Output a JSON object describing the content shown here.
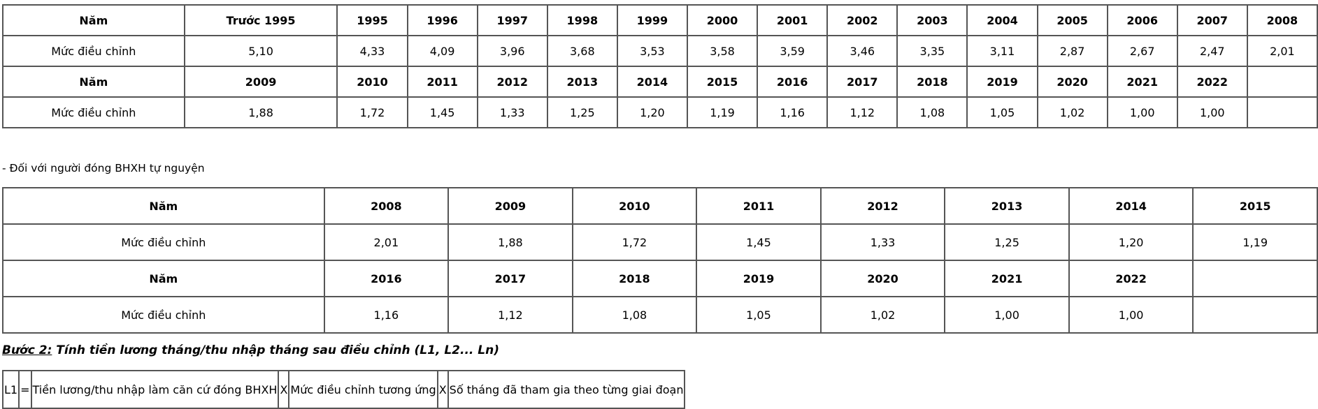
{
  "table1": {
    "row_label_year": "Năm",
    "row_label_rate": "Mức điều chỉnh",
    "rows": [
      {
        "years": [
          "Trước 1995",
          "1995",
          "1996",
          "1997",
          "1998",
          "1999",
          "2000",
          "2001",
          "2002",
          "2003",
          "2004",
          "2005",
          "2006",
          "2007",
          "2008"
        ],
        "rates": [
          "5,10",
          "4,33",
          "4,09",
          "3,96",
          "3,68",
          "3,53",
          "3,58",
          "3,59",
          "3,46",
          "3,35",
          "3,11",
          "2,87",
          "2,67",
          "2,47",
          "2,01"
        ]
      },
      {
        "years": [
          "2009",
          "2010",
          "2011",
          "2012",
          "2013",
          "2014",
          "2015",
          "2016",
          "2017",
          "2018",
          "2019",
          "2020",
          "2021",
          "2022",
          ""
        ],
        "rates": [
          "1,88",
          "1,72",
          "1,45",
          "1,33",
          "1,25",
          "1,20",
          "1,19",
          "1,16",
          "1,12",
          "1,08",
          "1,05",
          "1,02",
          "1,00",
          "1,00",
          ""
        ]
      }
    ]
  },
  "note": "- Đối với người đóng BHXH tự nguyện",
  "table2": {
    "row_label_year": "Năm",
    "row_label_rate": "Mức điều chỉnh",
    "rows": [
      {
        "years": [
          "2008",
          "2009",
          "2010",
          "2011",
          "2012",
          "2013",
          "2014",
          "2015"
        ],
        "rates": [
          "2,01",
          "1,88",
          "1,72",
          "1,45",
          "1,33",
          "1,25",
          "1,20",
          "1,19"
        ]
      },
      {
        "years": [
          "2016",
          "2017",
          "2018",
          "2019",
          "2020",
          "2021",
          "2022",
          ""
        ],
        "rates": [
          "1,16",
          "1,12",
          "1,08",
          "1,05",
          "1,02",
          "1,00",
          "1,00",
          ""
        ]
      }
    ]
  },
  "step": {
    "label": "Bước 2:",
    "text": " Tính tiền lương tháng/thu nhập tháng sau điều chỉnh (L1, L2... Ln)"
  },
  "formula": [
    "L1",
    "=",
    "Tiền lương/thu nhập làm căn cứ đóng BHXH",
    "X",
    "Mức điều chỉnh tương ứng",
    "X",
    "Số tháng đã tham gia theo từng giai đoạn"
  ]
}
